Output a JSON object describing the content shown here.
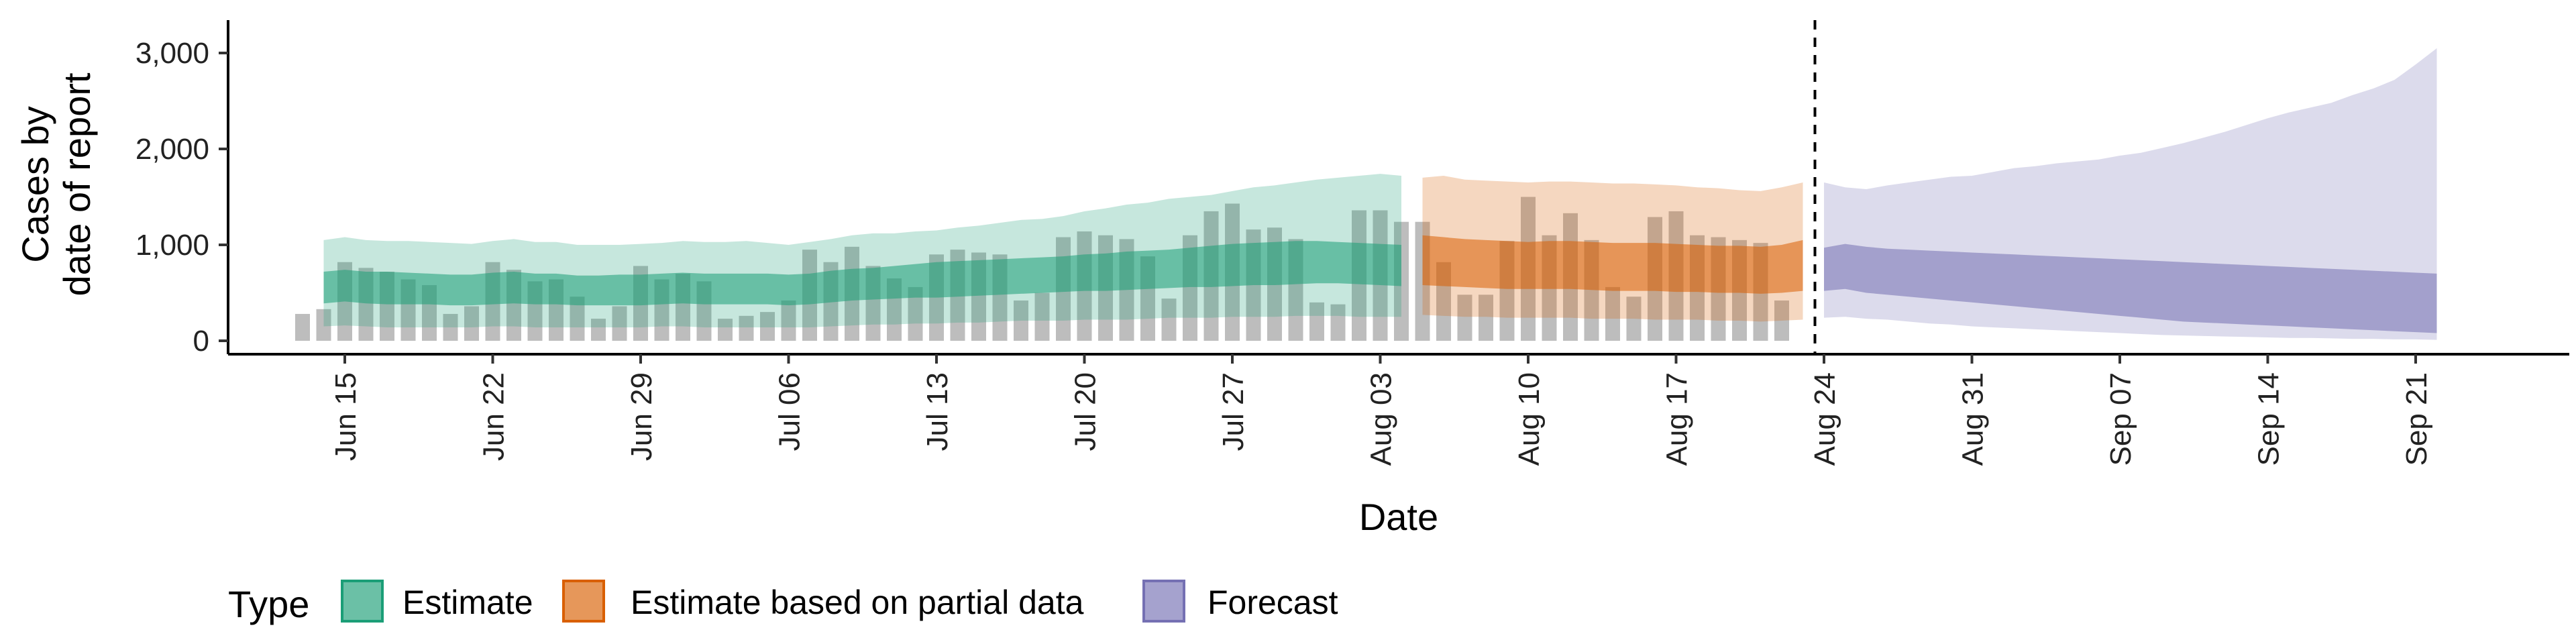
{
  "chart_data": {
    "type": "area",
    "title": "",
    "xlabel": "Date",
    "ylabel_lines": [
      "Cases by",
      "date of report"
    ],
    "ylim": [
      0,
      3000
    ],
    "y_ticks": [
      0,
      1000,
      2000,
      3000
    ],
    "y_tick_labels": [
      "0",
      "1,000",
      "2,000",
      "3,000"
    ],
    "x_start_date": "Jun 12",
    "x_ticks": [
      "Jun 15",
      "Jun 22",
      "Jun 29",
      "Jul 06",
      "Jul 13",
      "Jul 20",
      "Jul 27",
      "Aug 03",
      "Aug 10",
      "Aug 17",
      "Aug 24",
      "Aug 31",
      "Sep 07",
      "Sep 14",
      "Sep 21"
    ],
    "forecast_cutoff": "Aug 23",
    "grid": false,
    "legend": {
      "title": "Type",
      "placement": "bottom",
      "entries": [
        {
          "name": "Estimate",
          "color": "#1b9e77"
        },
        {
          "name": "Estimate based on partial data",
          "color": "#d95f02"
        },
        {
          "name": "Forecast",
          "color": "#7570b3"
        }
      ]
    },
    "reported_cases": [
      280,
      330,
      820,
      760,
      720,
      640,
      580,
      280,
      360,
      820,
      740,
      620,
      640,
      460,
      230,
      360,
      780,
      640,
      700,
      620,
      230,
      260,
      300,
      420,
      950,
      820,
      980,
      780,
      650,
      560,
      900,
      950,
      920,
      900,
      420,
      500,
      1080,
      1140,
      1100,
      1060,
      880,
      440,
      1100,
      1350,
      1430,
      1160,
      1180,
      1060,
      400,
      380,
      1360,
      1360,
      1240,
      1240,
      820,
      480,
      480,
      1040,
      1500,
      1100,
      1330,
      1050,
      560,
      460,
      1290,
      1350,
      1100,
      1080,
      1050,
      1020,
      420
    ],
    "series": [
      {
        "name": "Estimate",
        "date_range": [
          "Jun 14",
          "Aug 04"
        ],
        "outer_upper": [
          1050,
          1080,
          1050,
          1040,
          1040,
          1030,
          1020,
          1010,
          1040,
          1060,
          1030,
          1030,
          1000,
          1000,
          1000,
          1010,
          1020,
          1040,
          1030,
          1030,
          1040,
          1020,
          1000,
          1030,
          1060,
          1100,
          1120,
          1120,
          1140,
          1150,
          1180,
          1200,
          1230,
          1260,
          1270,
          1300,
          1350,
          1380,
          1420,
          1440,
          1480,
          1500,
          1520,
          1560,
          1600,
          1620,
          1650,
          1680,
          1700,
          1720,
          1740,
          1720
        ],
        "inner_upper": [
          720,
          740,
          720,
          720,
          710,
          700,
          690,
          690,
          710,
          720,
          700,
          700,
          680,
          680,
          690,
          690,
          700,
          710,
          700,
          700,
          700,
          700,
          690,
          700,
          730,
          750,
          760,
          780,
          800,
          820,
          830,
          840,
          850,
          860,
          870,
          880,
          900,
          910,
          930,
          940,
          950,
          970,
          990,
          1010,
          1020,
          1030,
          1040,
          1040,
          1030,
          1020,
          1010,
          1000
        ],
        "inner_lower": [
          390,
          410,
          390,
          380,
          380,
          380,
          370,
          370,
          380,
          390,
          380,
          380,
          370,
          370,
          370,
          370,
          380,
          390,
          380,
          380,
          380,
          380,
          370,
          380,
          400,
          420,
          430,
          440,
          450,
          450,
          460,
          470,
          480,
          490,
          500,
          510,
          520,
          520,
          530,
          540,
          550,
          560,
          560,
          570,
          580,
          580,
          590,
          600,
          600,
          590,
          580,
          570
        ],
        "outer_lower": [
          150,
          160,
          150,
          140,
          140,
          140,
          140,
          140,
          150,
          150,
          140,
          140,
          140,
          140,
          140,
          140,
          150,
          150,
          140,
          140,
          140,
          140,
          140,
          140,
          150,
          160,
          170,
          170,
          180,
          180,
          190,
          190,
          200,
          210,
          210,
          210,
          220,
          220,
          220,
          230,
          240,
          240,
          240,
          250,
          250,
          250,
          260,
          260,
          260,
          250,
          250,
          250
        ]
      },
      {
        "name": "Estimate based on partial data",
        "date_range": [
          "Aug 05",
          "Aug 23"
        ],
        "outer_upper": [
          1700,
          1720,
          1680,
          1670,
          1660,
          1650,
          1660,
          1660,
          1650,
          1640,
          1640,
          1630,
          1620,
          1600,
          1590,
          1570,
          1560,
          1600,
          1650
        ],
        "inner_upper": [
          1100,
          1080,
          1060,
          1050,
          1040,
          1030,
          1040,
          1040,
          1030,
          1020,
          1020,
          1020,
          1010,
          1000,
          990,
          990,
          980,
          1000,
          1050
        ],
        "inner_lower": [
          580,
          570,
          560,
          550,
          540,
          540,
          540,
          540,
          530,
          520,
          520,
          520,
          510,
          510,
          500,
          500,
          490,
          500,
          520
        ],
        "outer_lower": [
          270,
          260,
          250,
          250,
          240,
          240,
          240,
          240,
          230,
          230,
          230,
          220,
          220,
          220,
          210,
          210,
          200,
          210,
          220
        ]
      },
      {
        "name": "Forecast",
        "date_range": [
          "Aug 24",
          "Sep 22"
        ],
        "outer_upper": [
          1650,
          1600,
          1580,
          1620,
          1650,
          1680,
          1710,
          1720,
          1760,
          1800,
          1820,
          1850,
          1870,
          1890,
          1930,
          1960,
          2010,
          2060,
          2120,
          2180,
          2250,
          2320,
          2380,
          2430,
          2480,
          2560,
          2630,
          2720,
          2880,
          3050
        ],
        "inner_upper": [
          970,
          1010,
          980,
          960,
          950,
          940,
          930,
          920,
          910,
          900,
          890,
          880,
          870,
          860,
          850,
          840,
          830,
          820,
          810,
          800,
          790,
          780,
          770,
          760,
          750,
          740,
          730,
          720,
          710,
          700
        ],
        "inner_lower": [
          520,
          540,
          500,
          480,
          460,
          440,
          420,
          400,
          380,
          360,
          340,
          320,
          300,
          280,
          260,
          240,
          220,
          200,
          190,
          180,
          170,
          160,
          150,
          140,
          130,
          120,
          110,
          100,
          90,
          80
        ],
        "outer_lower": [
          240,
          250,
          230,
          220,
          200,
          180,
          170,
          150,
          140,
          130,
          120,
          110,
          100,
          90,
          80,
          70,
          60,
          55,
          50,
          45,
          40,
          35,
          30,
          30,
          25,
          20,
          20,
          15,
          15,
          10
        ]
      }
    ]
  }
}
